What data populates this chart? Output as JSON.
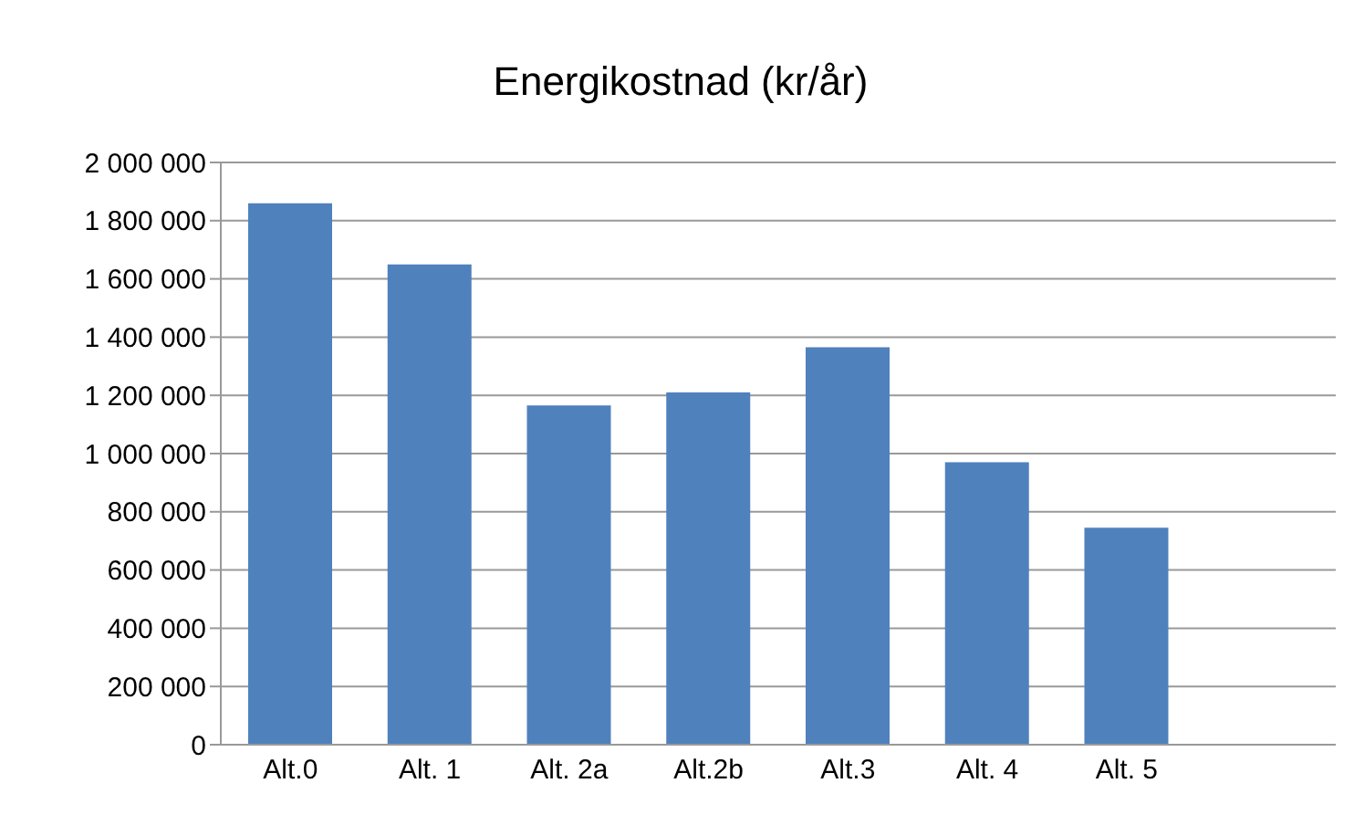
{
  "chart_data": {
    "type": "bar",
    "title": "Energikostnad (kr/år)",
    "categories": [
      "Alt.0",
      "Alt. 1",
      "Alt. 2a",
      "Alt.2b",
      "Alt.3",
      "Alt. 4",
      "Alt. 5",
      null
    ],
    "values": [
      1860000,
      1650000,
      1165000,
      1210000,
      1365000,
      970000,
      745000,
      null
    ],
    "color": "#4f81bd",
    "ylim": [
      0,
      2000000
    ],
    "yticks": [
      0,
      {
        "value": 200000,
        "label": "200 000"
      },
      {
        "value": 400000,
        "label": "400 000"
      },
      {
        "value": 600000,
        "label": "600 000"
      },
      {
        "value": 800000,
        "label": "800 000"
      },
      {
        "value": 1000000,
        "label": "1 000 000"
      },
      {
        "value": 1200000,
        "label": "1 200 000"
      },
      {
        "value": 1400000,
        "label": "1 400 000"
      },
      {
        "value": 1600000,
        "label": "1 600 000"
      },
      {
        "value": 1800000,
        "label": "1 800 000"
      },
      {
        "value": 2000000,
        "label": "2 000 000"
      }
    ],
    "grid": "y"
  }
}
